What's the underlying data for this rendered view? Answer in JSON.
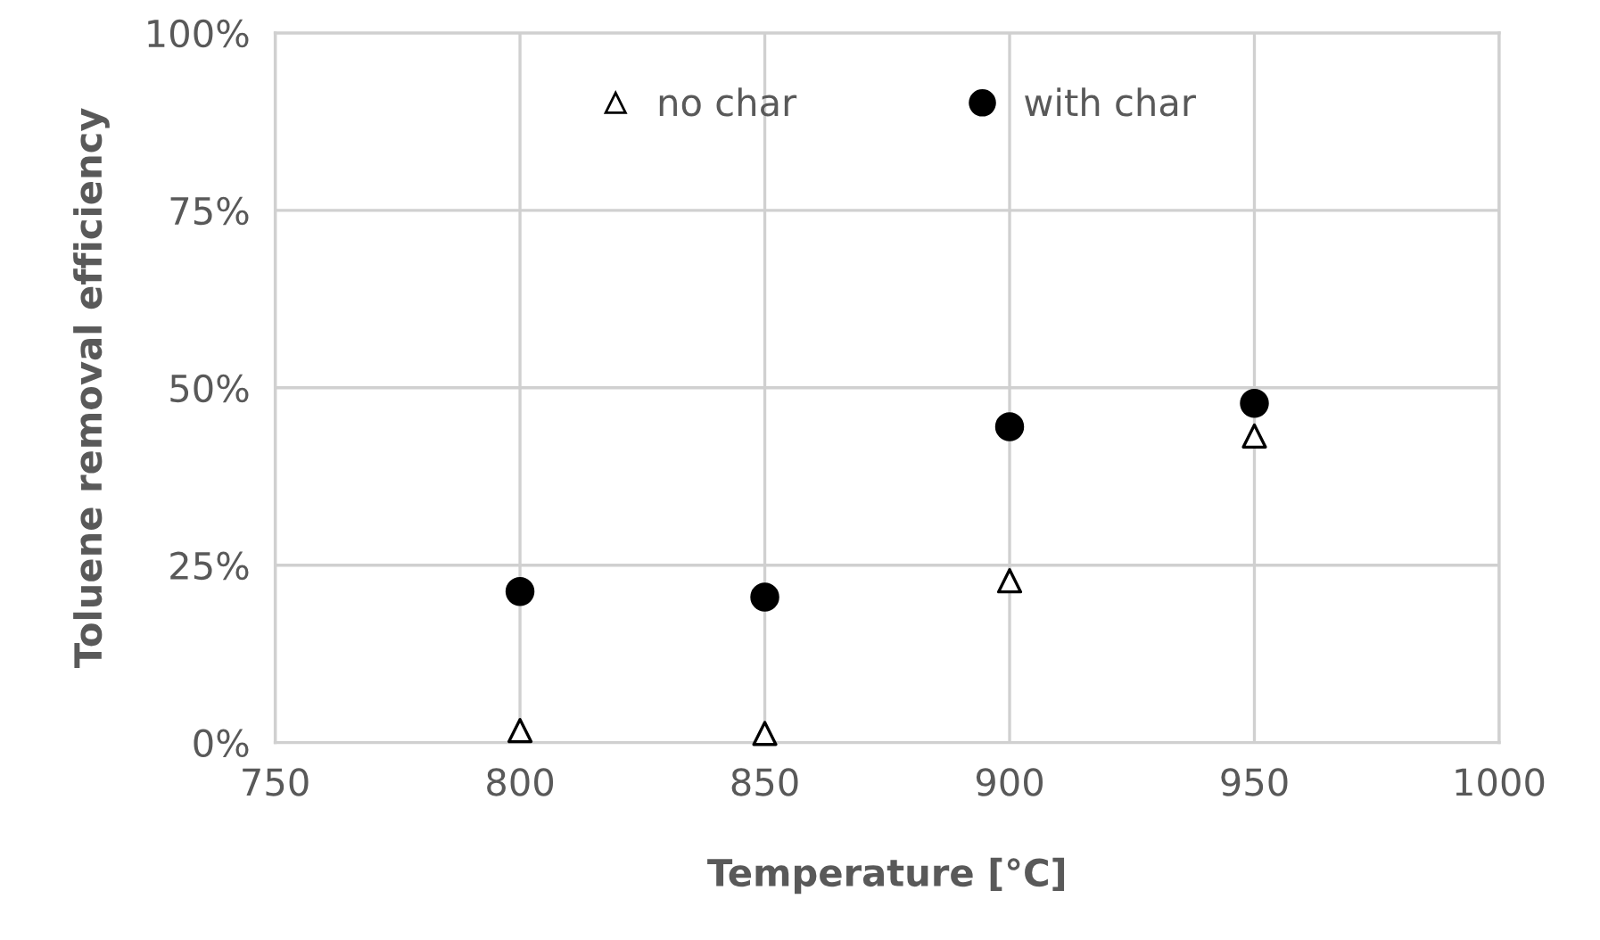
{
  "chart_data": {
    "type": "scatter",
    "xlabel": "Temperature [°C]",
    "ylabel": "Toluene removal efficiency",
    "series": [
      {
        "name": "no char",
        "color": "#000000",
        "marker": "triangle",
        "x": [
          800,
          850,
          900,
          950
        ],
        "values": [
          1.7,
          1.3,
          22.8,
          43.2
        ]
      },
      {
        "name": "with char",
        "color": "#000000",
        "marker": "circle",
        "x": [
          800,
          850,
          900,
          950
        ],
        "values": [
          21.3,
          20.5,
          44.5,
          47.8
        ]
      }
    ],
    "xlim": [
      750,
      1000
    ],
    "xticks": [
      750,
      800,
      850,
      900,
      950,
      1000
    ],
    "ylim": [
      0,
      100
    ],
    "yticks": [
      {
        "value": 0,
        "label": "0%"
      },
      {
        "value": 25,
        "label": "25%"
      },
      {
        "value": 50,
        "label": "50%"
      },
      {
        "value": 75,
        "label": "75%"
      },
      {
        "value": 100,
        "label": "100%"
      }
    ],
    "grid": true,
    "legend": "top"
  }
}
